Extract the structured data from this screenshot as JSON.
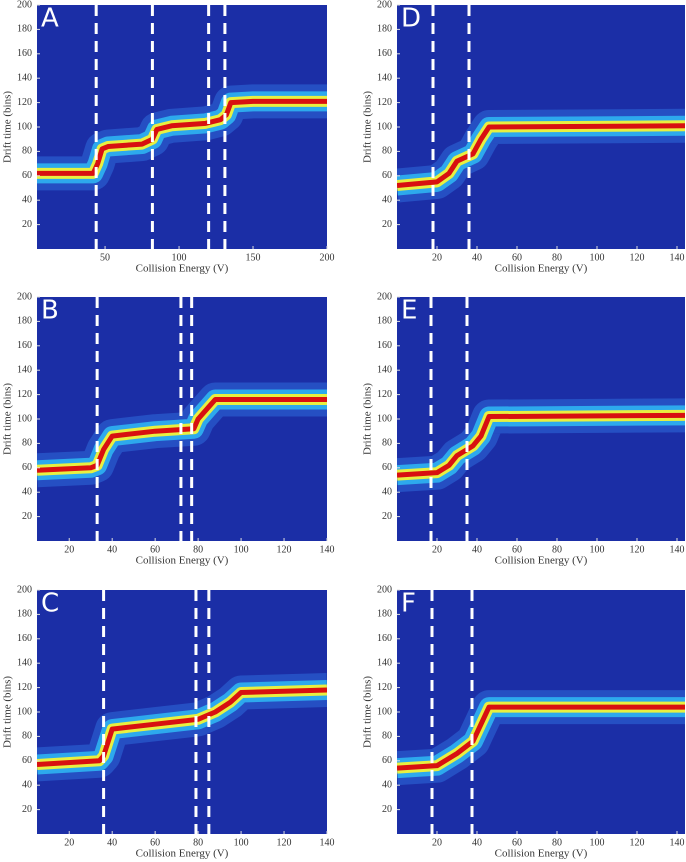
{
  "chart_data": [
    {
      "type": "heatmap",
      "panel": "A",
      "xlabel": "Collision Energy (V)",
      "ylabel": "Drift time (bins)",
      "xlim": [
        4,
        200
      ],
      "ylim": [
        0,
        200
      ],
      "xticks": [
        50,
        100,
        150,
        200
      ],
      "yticks": [
        20,
        40,
        60,
        80,
        100,
        120,
        140,
        160,
        180,
        200
      ],
      "vlines": [
        44,
        82,
        120,
        131
      ],
      "ridge": {
        "x": [
          4,
          42,
          45,
          48,
          52,
          75,
          82,
          85,
          95,
          118,
          128,
          132,
          135,
          150,
          200
        ],
        "y": [
          62,
          62,
          70,
          82,
          84,
          86,
          90,
          98,
          101,
          103,
          106,
          110,
          120,
          121,
          121
        ]
      }
    },
    {
      "type": "heatmap",
      "panel": "B",
      "xlabel": "Collision Energy (V)",
      "ylabel": "Drift time (bins)",
      "xlim": [
        5,
        140
      ],
      "ylim": [
        0,
        200
      ],
      "xticks": [
        20,
        40,
        60,
        80,
        100,
        120,
        140
      ],
      "yticks": [
        20,
        40,
        60,
        80,
        100,
        120,
        140,
        160,
        180,
        200
      ],
      "vlines": [
        33,
        72,
        77
      ],
      "ridge": {
        "x": [
          5,
          30,
          33,
          36,
          40,
          60,
          78,
          80,
          85,
          88,
          140
        ],
        "y": [
          58,
          60,
          62,
          75,
          86,
          90,
          92,
          100,
          110,
          116,
          116
        ]
      }
    },
    {
      "type": "heatmap",
      "panel": "C",
      "xlabel": "Collision Energy (V)",
      "ylabel": "Drift time (bins)",
      "xlim": [
        5,
        140
      ],
      "ylim": [
        0,
        200
      ],
      "xticks": [
        20,
        40,
        60,
        80,
        100,
        120,
        140
      ],
      "yticks": [
        20,
        40,
        60,
        80,
        100,
        120,
        140,
        160,
        180,
        200
      ],
      "vlines": [
        36,
        79,
        85
      ],
      "ridge": {
        "x": [
          5,
          34,
          36,
          40,
          60,
          80,
          88,
          95,
          100,
          140
        ],
        "y": [
          57,
          60,
          64,
          86,
          90,
          94,
          100,
          108,
          116,
          118
        ]
      }
    },
    {
      "type": "heatmap",
      "panel": "D",
      "xlabel": "Collision Energy (V)",
      "ylabel": "Drift time (bins)",
      "xlim": [
        0,
        144
      ],
      "ylim": [
        0,
        200
      ],
      "xticks": [
        20,
        40,
        60,
        80,
        100,
        120,
        140
      ],
      "yticks": [
        20,
        40,
        60,
        80,
        100,
        120,
        140,
        160,
        180,
        200
      ],
      "vlines": [
        18,
        36
      ],
      "ridge": {
        "x": [
          0,
          20,
          26,
          30,
          38,
          42,
          46,
          144
        ],
        "y": [
          52,
          55,
          62,
          72,
          78,
          90,
          100,
          101
        ]
      }
    },
    {
      "type": "heatmap",
      "panel": "E",
      "xlabel": "Collision Energy (V)",
      "ylabel": "Drift time (bins)",
      "xlim": [
        0,
        144
      ],
      "ylim": [
        0,
        200
      ],
      "xticks": [
        20,
        40,
        60,
        80,
        100,
        120,
        140
      ],
      "yticks": [
        20,
        40,
        60,
        80,
        100,
        120,
        140,
        160,
        180,
        200
      ],
      "vlines": [
        17,
        35
      ],
      "ridge": {
        "x": [
          0,
          20,
          26,
          30,
          38,
          42,
          46,
          144
        ],
        "y": [
          54,
          56,
          62,
          70,
          78,
          86,
          102,
          103
        ]
      }
    },
    {
      "type": "heatmap",
      "panel": "F",
      "xlabel": "Collision Energy (V)",
      "ylabel": "Drift time (bins)",
      "xlim": [
        0,
        144
      ],
      "ylim": [
        0,
        200
      ],
      "xticks": [
        20,
        40,
        60,
        80,
        100,
        120,
        140
      ],
      "yticks": [
        20,
        40,
        60,
        80,
        100,
        120,
        140,
        160,
        180,
        200
      ],
      "vlines": [
        17.5,
        37.5
      ],
      "ridge": {
        "x": [
          0,
          20,
          26,
          30,
          38,
          42,
          46,
          144
        ],
        "y": [
          54,
          56,
          62,
          66,
          76,
          90,
          104,
          104
        ]
      }
    }
  ]
}
